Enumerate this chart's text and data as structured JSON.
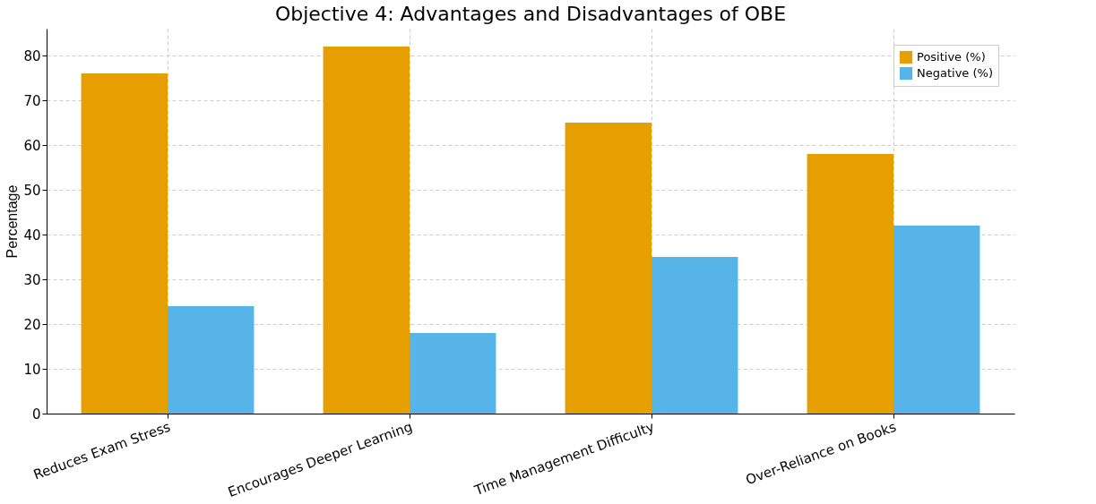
{
  "chart_data": {
    "type": "bar",
    "title": "Objective 4: Advantages and Disadvantages of OBE",
    "ylabel": "Percentage",
    "categories": [
      "Reduces Exam Stress",
      "Encourages Deeper Learning",
      "Time Management Difficulty",
      "Over-Reliance on Books"
    ],
    "series": [
      {
        "name": "Positive (%)",
        "color": "#e69f00",
        "values": [
          76,
          82,
          65,
          58
        ]
      },
      {
        "name": "Negative (%)",
        "color": "#56b4e9",
        "values": [
          24,
          18,
          35,
          42
        ]
      }
    ],
    "ylim": [
      0,
      86
    ],
    "yticks": [
      0,
      10,
      20,
      30,
      40,
      50,
      60,
      70,
      80
    ],
    "grid": true,
    "legend": "top right"
  }
}
